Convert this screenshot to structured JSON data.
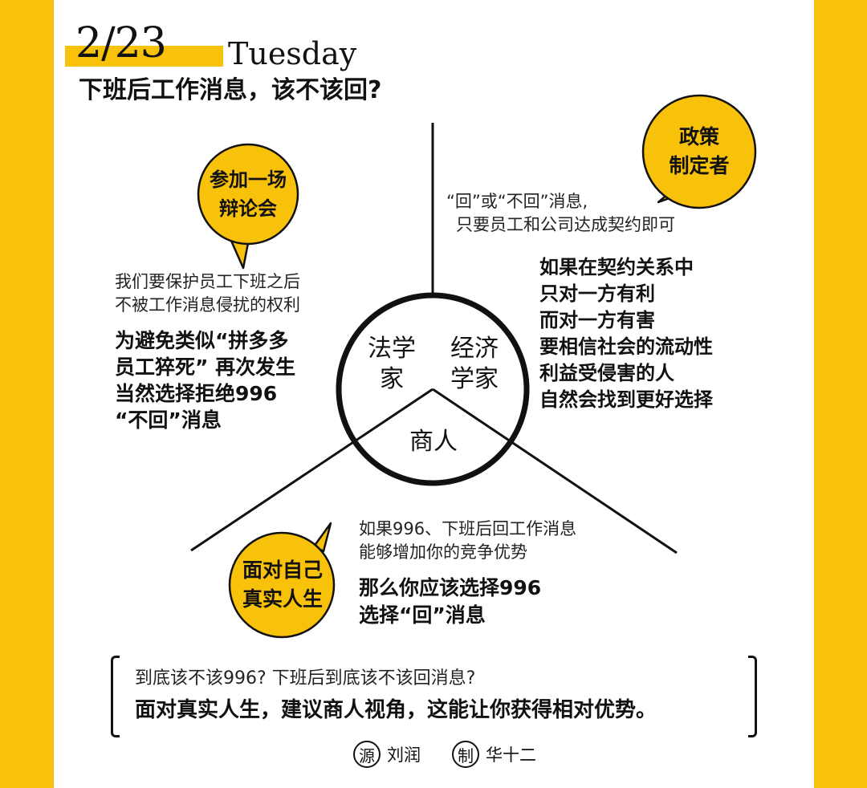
{
  "header": {
    "date": "2/23",
    "weekday": "Tuesday",
    "headline": "下班后工作消息，该不该回?"
  },
  "accent_color": "#f8c10a",
  "bubbles": {
    "debate": [
      "参加一场",
      "辩论会"
    ],
    "policy": [
      "政策",
      "制定者"
    ],
    "life": [
      "面对自己",
      "真实人生"
    ]
  },
  "circle_labels": {
    "lawyer": [
      "法学",
      "家"
    ],
    "economist": [
      "经济",
      "学家"
    ],
    "merchant": "商人"
  },
  "lawyer_view": {
    "note": [
      "我们要保护员工下班之后",
      "不被工作消息侵扰的权利"
    ],
    "bold": [
      "为避免类似“拼多多",
      "员工猝死” 再次发生",
      "当然选择拒绝996",
      "“不回”消息"
    ]
  },
  "economist_view": {
    "note": [
      "“回”或“不回”消息,",
      "只要员工和公司达成契约即可"
    ],
    "bold": [
      "如果在契约关系中",
      "只对一方有利",
      "而对一方有害",
      "要相信社会的流动性",
      "利益受侵害的人",
      "自然会找到更好选择"
    ]
  },
  "merchant_view": {
    "note": [
      "如果996、下班后回工作消息",
      "能够增加你的竞争优势"
    ],
    "bold": [
      "那么你应该选择996",
      "选择“回”消息"
    ]
  },
  "conclusion": {
    "question": "到底该不该996?  下班后到底该不该回消息?",
    "answer": "面对真实人生，建议商人视角，这能让你获得相对优势。"
  },
  "credits": {
    "source_badge": "源",
    "source_name": "刘润",
    "maker_badge": "制",
    "maker_name": "华十二"
  }
}
